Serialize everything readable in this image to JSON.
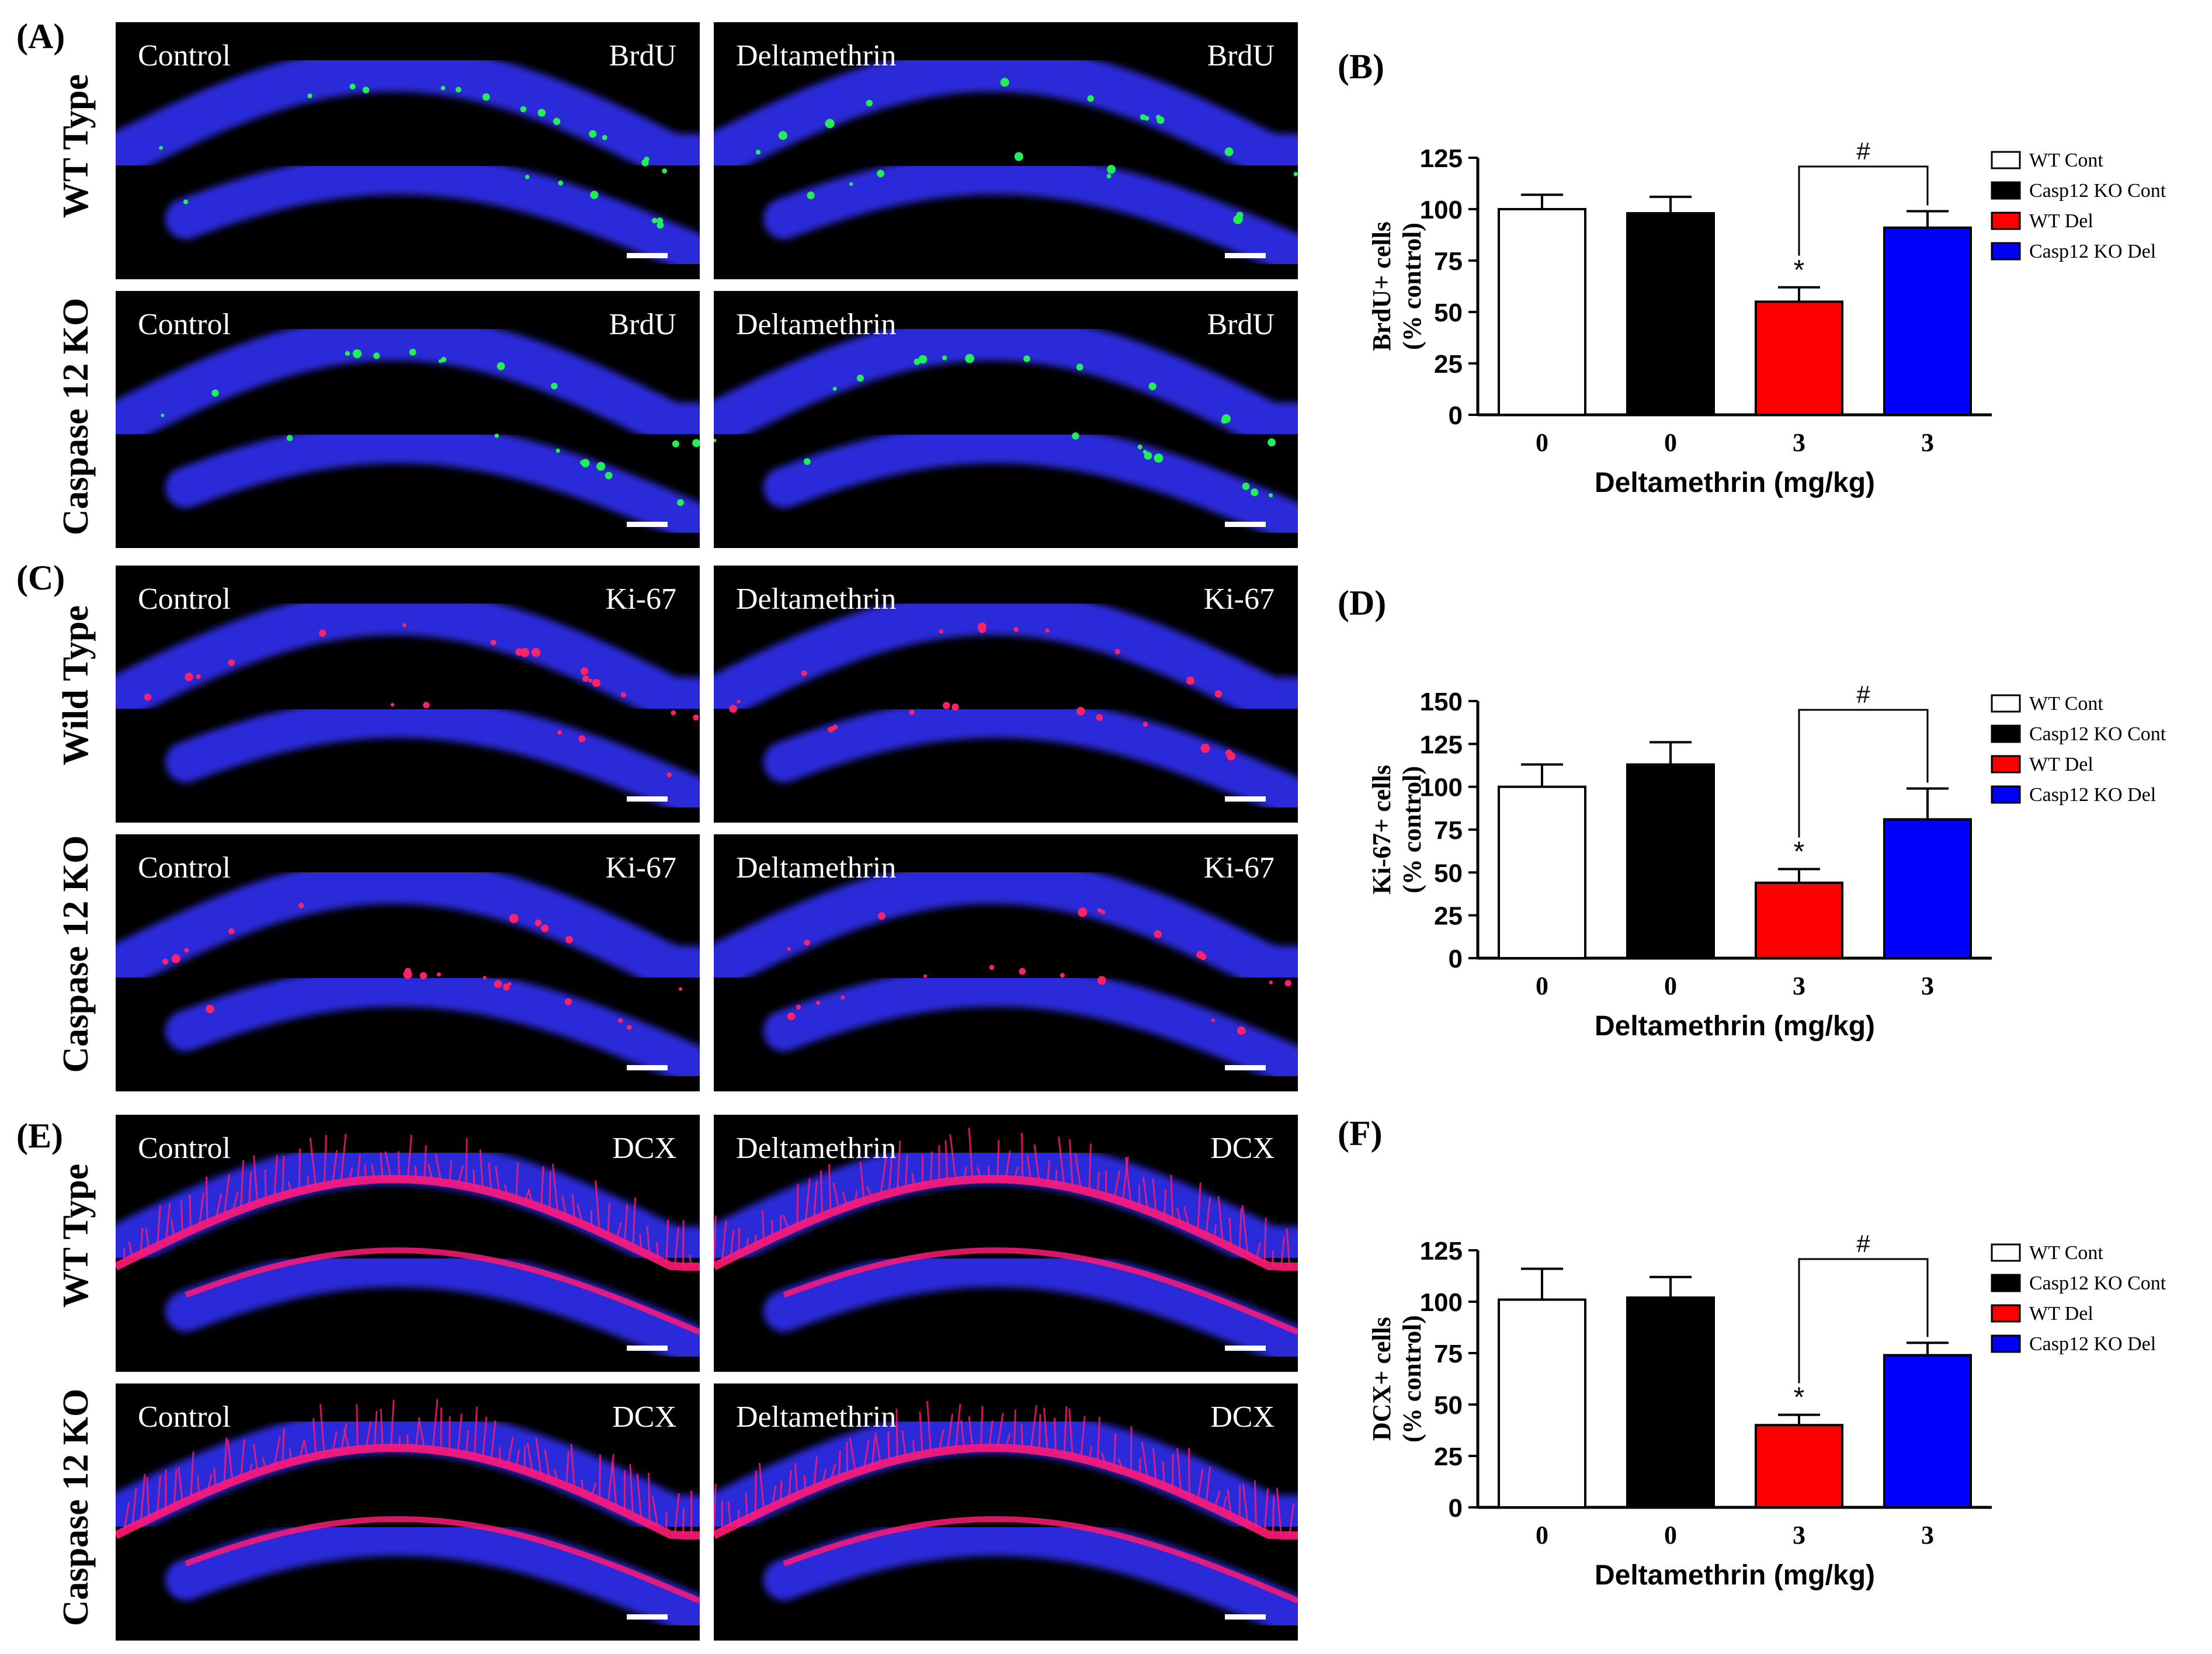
{
  "panels": {
    "a": "(A)",
    "b": "(B)",
    "c": "(C)",
    "d": "(D)",
    "e": "(E)",
    "f": "(F)"
  },
  "rows": {
    "brdu_wt": "WT Type",
    "brdu_ko": "Caspase 12 KO",
    "ki67_wt": "Wild Type",
    "ki67_ko": "Caspase 12 KO",
    "dcx_wt": "WT Type",
    "dcx_ko": "Caspase 12 KO"
  },
  "micrographs": [
    {
      "condition": "Control",
      "marker": "BrdU"
    },
    {
      "condition": "Deltamethrin",
      "marker": "BrdU"
    },
    {
      "condition": "Control",
      "marker": "BrdU"
    },
    {
      "condition": "Deltamethrin",
      "marker": "BrdU"
    },
    {
      "condition": "Control",
      "marker": "Ki-67"
    },
    {
      "condition": "Deltamethrin",
      "marker": "Ki-67"
    },
    {
      "condition": "Control",
      "marker": "Ki-67"
    },
    {
      "condition": "Deltamethrin",
      "marker": "Ki-67"
    },
    {
      "condition": "Control",
      "marker": "DCX"
    },
    {
      "condition": "Deltamethrin",
      "marker": "DCX"
    },
    {
      "condition": "Control",
      "marker": "DCX"
    },
    {
      "condition": "Deltamethrin",
      "marker": "DCX"
    }
  ],
  "colors": {
    "wt_cont": "#ffffff",
    "ko_cont": "#000000",
    "wt_del": "#ff0000",
    "ko_del": "#0000ff",
    "nuclei": "#2b2bd9",
    "brdu": "#22ee55",
    "ki67": "#ff2266",
    "dcx": "#ff1a77"
  },
  "chart_data": [
    {
      "type": "bar",
      "title": "(B)",
      "categories": [
        "0",
        "0",
        "3",
        "3"
      ],
      "values": [
        100,
        98,
        55,
        91
      ],
      "errors": [
        7,
        8,
        7,
        8
      ],
      "ylim": [
        0,
        125
      ],
      "yticks": [
        "0",
        "25",
        "50",
        "75",
        "100",
        "125"
      ],
      "xlabel": "Deltamethrin (mg/kg)",
      "ylabel_line1": "BrdU+ cells",
      "ylabel_line2": "(% control)",
      "legend": [
        "WT Cont",
        "Casp12 KO Cont",
        "WT Del",
        "Casp12 KO Del"
      ],
      "significance": {
        "star": "*",
        "hash": "#"
      }
    },
    {
      "type": "bar",
      "title": "(D)",
      "categories": [
        "0",
        "0",
        "3",
        "3"
      ],
      "values": [
        100,
        113,
        44,
        81
      ],
      "errors": [
        13,
        13,
        8,
        18
      ],
      "ylim": [
        0,
        150
      ],
      "yticks": [
        "0",
        "25",
        "50",
        "75",
        "100",
        "125",
        "150"
      ],
      "xlabel": "Deltamethrin (mg/kg)",
      "ylabel_line1": "Ki-67+ cells",
      "ylabel_line2": "(% control)",
      "legend": [
        "WT Cont",
        "Casp12 KO Cont",
        "WT Del",
        "Casp12 KO Del"
      ],
      "significance": {
        "star": "*",
        "hash": "#"
      }
    },
    {
      "type": "bar",
      "title": "(F)",
      "categories": [
        "0",
        "0",
        "3",
        "3"
      ],
      "values": [
        101,
        102,
        40,
        74
      ],
      "errors": [
        15,
        10,
        5,
        6
      ],
      "ylim": [
        0,
        125
      ],
      "yticks": [
        "0",
        "25",
        "50",
        "75",
        "100",
        "125"
      ],
      "xlabel": "Deltamethrin (mg/kg)",
      "ylabel_line1": "DCX+ cells",
      "ylabel_line2": "(% control)",
      "legend": [
        "WT Cont",
        "Casp12 KO Cont",
        "WT Del",
        "Casp12 KO Del"
      ],
      "significance": {
        "star": "*",
        "hash": "#"
      }
    }
  ]
}
